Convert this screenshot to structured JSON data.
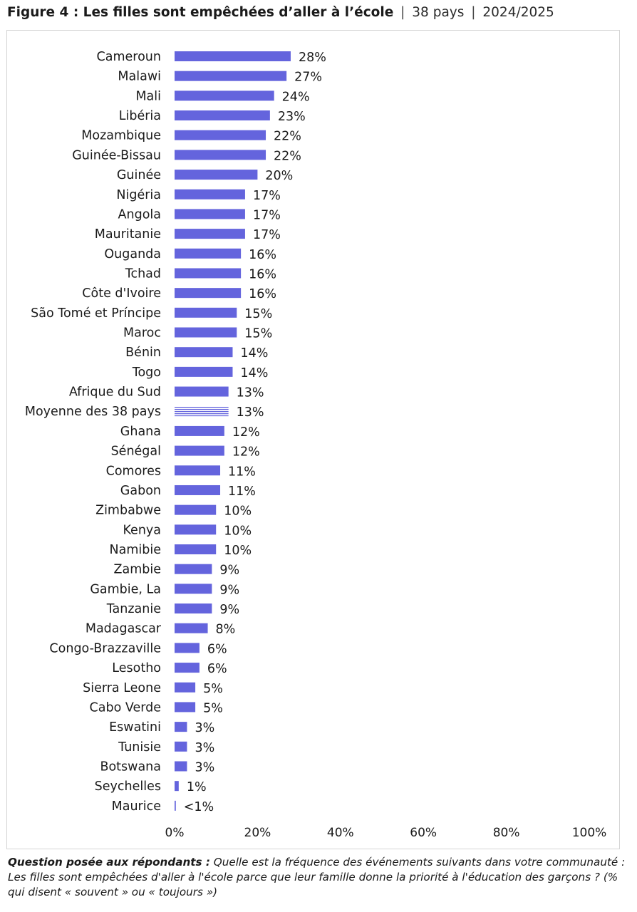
{
  "header": {
    "title": "Figure 4 : Les filles sont empêchées d’aller à l’école",
    "separator": "|",
    "countries": "38 pays",
    "period": "2024/2025"
  },
  "colors": {
    "bar": "#6464dd",
    "average_bar_stripes": "#6464dd",
    "text": "#1a1a1a",
    "panel_border": "#d4d4d4"
  },
  "chart_data": {
    "type": "bar",
    "orientation": "horizontal",
    "title": "Les filles sont empêchées d’aller à l’école",
    "xlim": [
      0,
      100
    ],
    "x_ticks": [
      "0%",
      "20%",
      "40%",
      "60%",
      "80%",
      "100%"
    ],
    "grid": false,
    "legend": "none",
    "categories": [
      "Cameroun",
      "Malawi",
      "Mali",
      "Libéria",
      "Mozambique",
      "Guinée-Bissau",
      "Guinée",
      "Nigéria",
      "Angola",
      "Mauritanie",
      "Ouganda",
      "Tchad",
      "Côte d'Ivoire",
      "São Tomé et Príncipe",
      "Maroc",
      "Bénin",
      "Togo",
      "Afrique du Sud",
      "Moyenne des 38 pays",
      "Ghana",
      "Sénégal",
      "Comores",
      "Gabon",
      "Zimbabwe",
      "Kenya",
      "Namibie",
      "Zambie",
      "Gambie, La",
      "Tanzanie",
      "Madagascar",
      "Congo-Brazzaville",
      "Lesotho",
      "Sierra Leone",
      "Cabo Verde",
      "Eswatini",
      "Tunisie",
      "Botswana",
      "Seychelles",
      "Maurice"
    ],
    "values": [
      28,
      27,
      24,
      23,
      22,
      22,
      20,
      17,
      17,
      17,
      16,
      16,
      16,
      15,
      15,
      14,
      14,
      13,
      13,
      12,
      12,
      11,
      11,
      10,
      10,
      10,
      9,
      9,
      9,
      8,
      6,
      6,
      5,
      5,
      3,
      3,
      3,
      1,
      0.3
    ],
    "labels": [
      "28%",
      "27%",
      "24%",
      "23%",
      "22%",
      "22%",
      "20%",
      "17%",
      "17%",
      "17%",
      "16%",
      "16%",
      "16%",
      "15%",
      "15%",
      "14%",
      "14%",
      "13%",
      "13%",
      "12%",
      "12%",
      "11%",
      "11%",
      "10%",
      "10%",
      "10%",
      "9%",
      "9%",
      "9%",
      "8%",
      "6%",
      "6%",
      "5%",
      "5%",
      "3%",
      "3%",
      "3%",
      "1%",
      "<1%"
    ],
    "highlight_category": "Moyenne des 38 pays"
  },
  "footer": {
    "question_label": "Question posée aux répondants :",
    "question_text": "Quelle est la fréquence des événements suivants dans votre communauté : Les filles sont empêchées d'aller à l'école parce que leur famille donne la priorité à l'éducation des garçons ? (% qui disent « souvent » ou « toujours »)"
  }
}
